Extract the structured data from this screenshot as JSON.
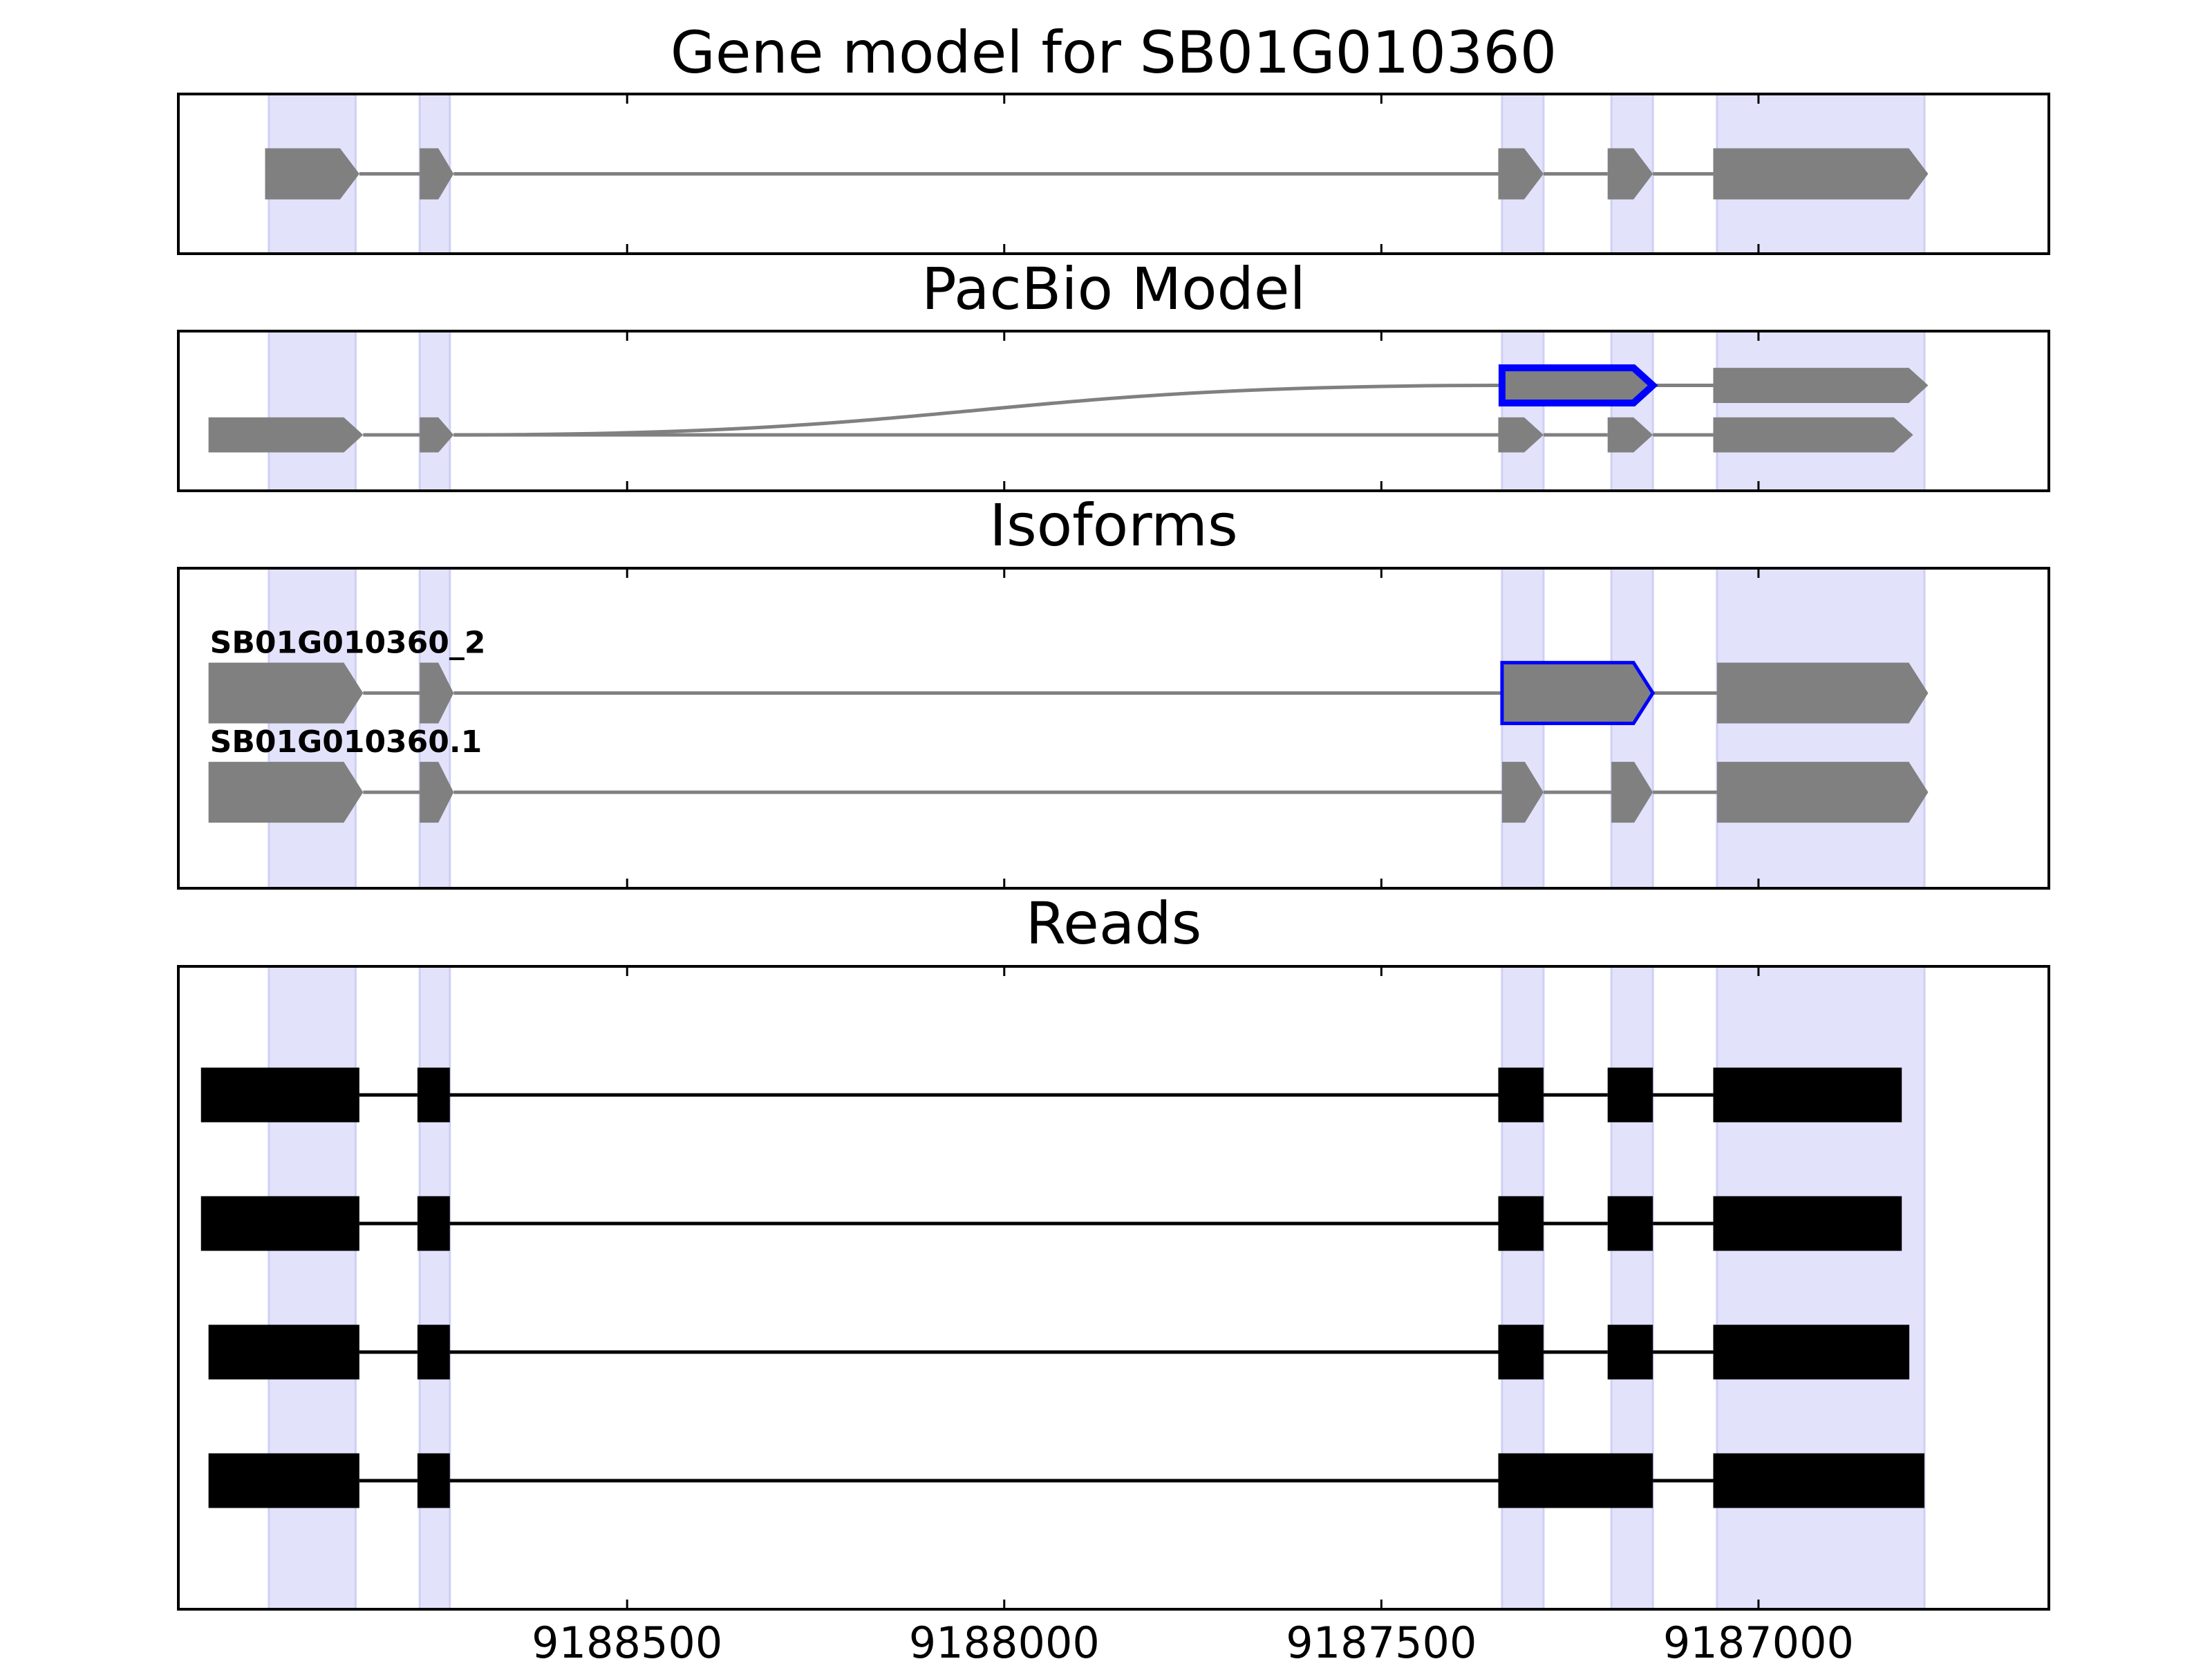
{
  "chart_data": {
    "type": "gene-structure",
    "x_axis": {
      "reversed": true,
      "xlim": [
        9189095,
        9186615
      ],
      "ticks": [
        9188500,
        9188000,
        9187500,
        9187000
      ],
      "tick_labels": [
        "9188500",
        "9188000",
        "9187500",
        "9187000"
      ]
    },
    "highlight_regions": [
      [
        9188975,
        9188860
      ],
      [
        9188775,
        9188735
      ],
      [
        9187340,
        9187285
      ],
      [
        9187195,
        9187140
      ],
      [
        9187055,
        9186780
      ]
    ],
    "panels": [
      {
        "id": "gene-model",
        "title": "Gene model for SB01G010360",
        "ylim": [
          0,
          1
        ],
        "tracks": [
          {
            "y": 0.5,
            "h": 0.32,
            "style": "gray",
            "exons": [
              [
                9188980,
                9188855
              ],
              [
                9188775,
                9188730
              ],
              [
                9187345,
                9187285
              ],
              [
                9187200,
                9187140
              ],
              [
                9187060,
                9186775
              ]
            ]
          }
        ]
      },
      {
        "id": "pacbio-model",
        "title": "PacBio Model",
        "ylim": [
          0,
          1
        ],
        "tracks": [
          {
            "y": 0.35,
            "h": 0.22,
            "style": "gray",
            "exons": [
              [
                9189055,
                9188850
              ],
              [
                9188775,
                9188730
              ],
              [
                9187345,
                9187285
              ],
              [
                9187200,
                9187140
              ],
              [
                9187060,
                9186795
              ]
            ]
          },
          {
            "y": 0.66,
            "h": 0.22,
            "style": "gray",
            "exons": [
              [
                9187340,
                9187140
              ],
              [
                9187060,
                9186775
              ]
            ],
            "outlined_exon": 0,
            "outline_color": "#0000ff",
            "curve_from": 9188730,
            "curve_from_y": 0.35
          }
        ]
      },
      {
        "id": "isoforms",
        "title": "Isoforms",
        "ylim": [
          0,
          1
        ],
        "tracks": [
          {
            "y": 0.61,
            "h": 0.19,
            "style": "gray",
            "label": "SB01G010360_2",
            "exons": [
              [
                9189055,
                9188850
              ],
              [
                9188775,
                9188730
              ],
              [
                9187340,
                9187140
              ],
              [
                9187055,
                9186775
              ]
            ],
            "outlined_exon": 2,
            "outline_color": "#0000ff"
          },
          {
            "y": 0.3,
            "h": 0.19,
            "style": "gray",
            "label": "SB01G010360.1",
            "exons": [
              [
                9189055,
                9188850
              ],
              [
                9188775,
                9188730
              ],
              [
                9187340,
                9187285
              ],
              [
                9187195,
                9187140
              ],
              [
                9187055,
                9186775
              ]
            ]
          }
        ]
      },
      {
        "id": "reads",
        "title": "Reads",
        "ylim": [
          0,
          1
        ],
        "tracks": [
          {
            "y": 0.8,
            "h": 0.085,
            "style": "black",
            "exons": [
              [
                9189065,
                9188855
              ],
              [
                9188778,
                9188735
              ],
              [
                9187345,
                9187285
              ],
              [
                9187200,
                9187140
              ],
              [
                9187060,
                9186810
              ]
            ]
          },
          {
            "y": 0.6,
            "h": 0.085,
            "style": "black",
            "exons": [
              [
                9189065,
                9188855
              ],
              [
                9188778,
                9188735
              ],
              [
                9187345,
                9187285
              ],
              [
                9187200,
                9187140
              ],
              [
                9187060,
                9186810
              ]
            ]
          },
          {
            "y": 0.4,
            "h": 0.085,
            "style": "black",
            "exons": [
              [
                9189055,
                9188855
              ],
              [
                9188778,
                9188735
              ],
              [
                9187345,
                9187285
              ],
              [
                9187200,
                9187140
              ],
              [
                9187060,
                9186800
              ]
            ]
          },
          {
            "y": 0.2,
            "h": 0.085,
            "style": "black",
            "exons": [
              [
                9189055,
                9188855
              ],
              [
                9188778,
                9188735
              ],
              [
                9187345,
                9187140
              ],
              [
                9187060,
                9186780
              ]
            ]
          }
        ]
      }
    ],
    "colors": {
      "highlight": "#e2e2fb",
      "highlight_edge": "#cfcff5",
      "gray_feature": "#808080",
      "read": "#000000",
      "outline": "#0000ff"
    }
  }
}
